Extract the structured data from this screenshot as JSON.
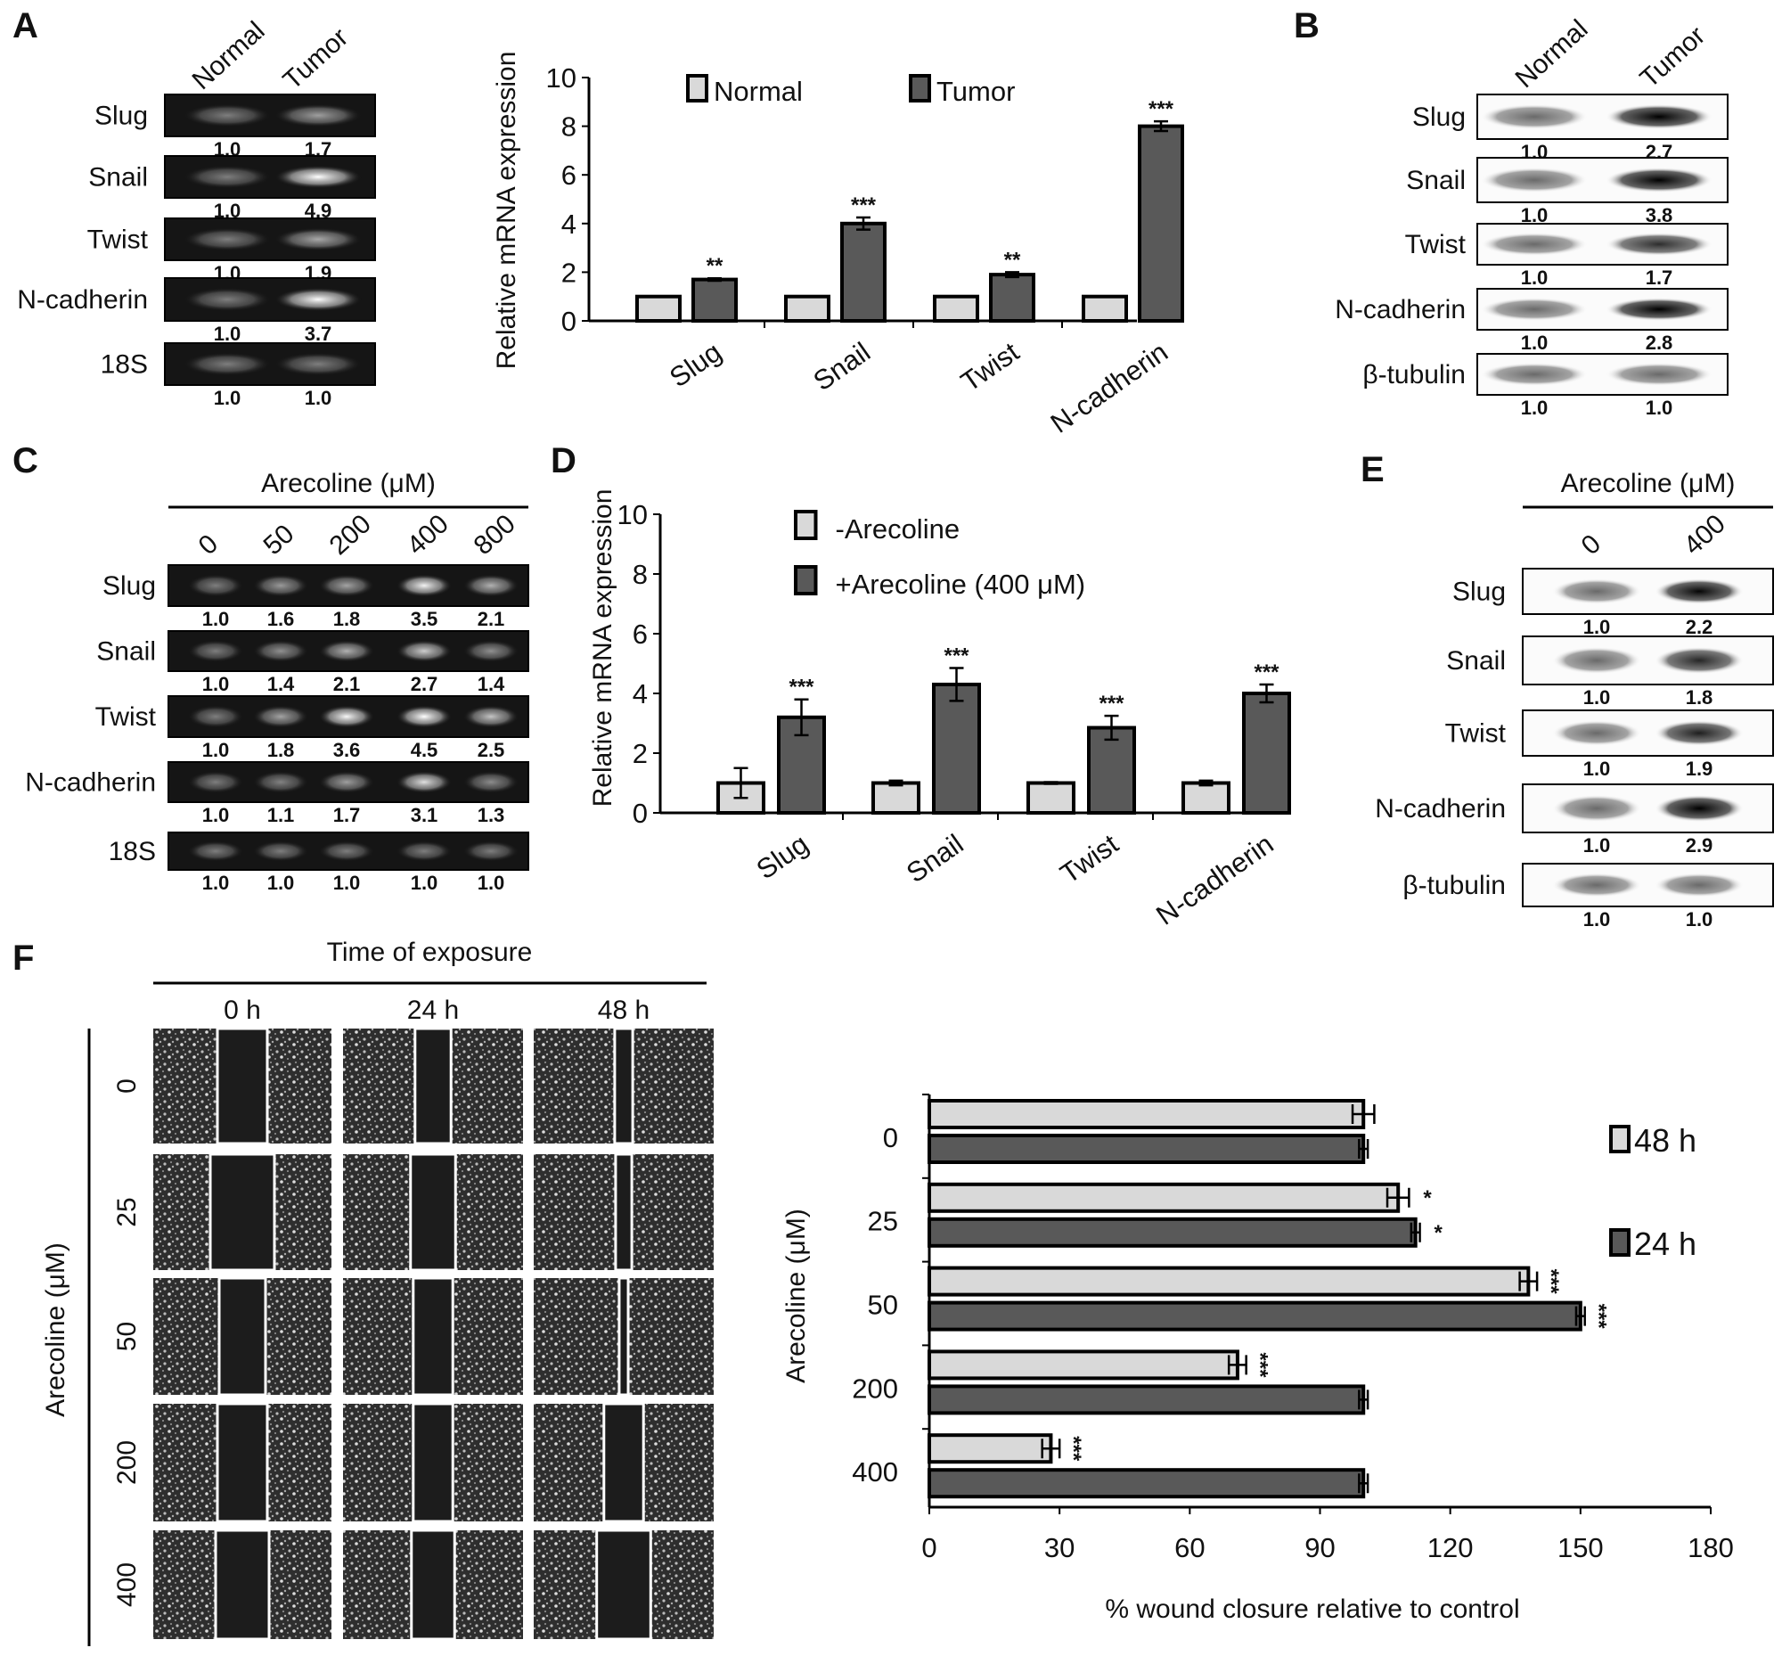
{
  "panel_labels": {
    "A": "A",
    "B": "B",
    "C": "C",
    "D": "D",
    "E": "E",
    "F": "F"
  },
  "panel_a_gel": {
    "lanes": [
      "Normal",
      "Tumor"
    ],
    "rows": [
      {
        "name": "Slug",
        "values": [
          "1.0",
          "1.7"
        ]
      },
      {
        "name": "Snail",
        "values": [
          "1.0",
          "4.9"
        ]
      },
      {
        "name": "Twist",
        "values": [
          "1.0",
          "1.9"
        ]
      },
      {
        "name": "N-cadherin",
        "values": [
          "1.0",
          "3.7"
        ]
      },
      {
        "name": "18S",
        "values": [
          "1.0",
          "1.0"
        ]
      }
    ]
  },
  "panel_b_blot": {
    "lanes": [
      "Normal",
      "Tumor"
    ],
    "rows": [
      {
        "name": "Slug",
        "values": [
          "1.0",
          "2.7"
        ]
      },
      {
        "name": "Snail",
        "values": [
          "1.0",
          "3.8"
        ]
      },
      {
        "name": "Twist",
        "values": [
          "1.0",
          "1.7"
        ]
      },
      {
        "name": "N-cadherin",
        "values": [
          "1.0",
          "2.8"
        ]
      },
      {
        "name": "β-tubulin",
        "values": [
          "1.0",
          "1.0"
        ]
      }
    ]
  },
  "panel_c_gel": {
    "header": "Arecoline (μM)",
    "lanes": [
      "0",
      "50",
      "200",
      "400",
      "800"
    ],
    "rows": [
      {
        "name": "Slug",
        "values": [
          "1.0",
          "1.6",
          "1.8",
          "3.5",
          "2.1"
        ]
      },
      {
        "name": "Snail",
        "values": [
          "1.0",
          "1.4",
          "2.1",
          "2.7",
          "1.4"
        ]
      },
      {
        "name": "Twist",
        "values": [
          "1.0",
          "1.8",
          "3.6",
          "4.5",
          "2.5"
        ]
      },
      {
        "name": "N-cadherin",
        "values": [
          "1.0",
          "1.1",
          "1.7",
          "3.1",
          "1.3"
        ]
      },
      {
        "name": "18S",
        "values": [
          "1.0",
          "1.0",
          "1.0",
          "1.0",
          "1.0"
        ]
      }
    ]
  },
  "panel_e_blot": {
    "header": "Arecoline (μM)",
    "lanes": [
      "0",
      "400"
    ],
    "rows": [
      {
        "name": "Slug",
        "values": [
          "1.0",
          "2.2"
        ]
      },
      {
        "name": "Snail",
        "values": [
          "1.0",
          "1.8"
        ]
      },
      {
        "name": "Twist",
        "values": [
          "1.0",
          "1.9"
        ]
      },
      {
        "name": "N-cadherin",
        "values": [
          "1.0",
          "2.9"
        ]
      },
      {
        "name": "β-tubulin",
        "values": [
          "1.0",
          "1.0"
        ]
      }
    ]
  },
  "panel_f_images": {
    "header": "Time of exposure",
    "columns": [
      "0 h",
      "24 h",
      "48 h"
    ],
    "rows": [
      "0",
      "25",
      "50",
      "200",
      "400"
    ],
    "row_axis_label": "Arecoline  (μM)"
  },
  "chart_data": [
    {
      "id": "A",
      "type": "bar",
      "categories": [
        "Slug",
        "Snail",
        "Twist",
        "N-cadherin"
      ],
      "series": [
        {
          "name": "Normal",
          "values": [
            1.0,
            1.0,
            1.0,
            1.0
          ],
          "errors": [
            0,
            0,
            0,
            0
          ],
          "color": "#d9d9d9"
        },
        {
          "name": "Tumor",
          "values": [
            1.7,
            4.0,
            1.9,
            8.0
          ],
          "errors": [
            0.05,
            0.25,
            0.1,
            0.2
          ],
          "color": "#595959"
        }
      ],
      "significance": [
        [
          "",
          ""
        ],
        [
          "",
          "**"
        ],
        [
          "",
          ""
        ],
        [
          "",
          "***"
        ]
      ],
      "sig_tumor": [
        "**",
        "***",
        "**",
        "***"
      ],
      "ylabel": "Relative mRNA expression",
      "ylim": [
        0,
        10
      ],
      "yticks": [
        "0",
        "2",
        "4",
        "6",
        "8",
        "10"
      ],
      "legend": "top"
    },
    {
      "id": "D",
      "type": "bar",
      "categories": [
        "Slug",
        "Snail",
        "Twist",
        "N-cadherin"
      ],
      "series": [
        {
          "name": "-Arecoline",
          "values": [
            1.0,
            1.0,
            1.0,
            1.0
          ],
          "errors": [
            0.5,
            0.08,
            0.03,
            0.08
          ],
          "color": "#d9d9d9"
        },
        {
          "name": "+Arecoline (400 μM)",
          "values": [
            3.2,
            4.3,
            2.85,
            4.0
          ],
          "errors": [
            0.6,
            0.55,
            0.4,
            0.3
          ],
          "color": "#595959"
        }
      ],
      "sig_treated": [
        "***",
        "***",
        "***",
        "***"
      ],
      "ylabel": "Relative mRNA expression",
      "ylim": [
        0,
        10
      ],
      "yticks": [
        "0",
        "2",
        "4",
        "6",
        "8",
        "10"
      ],
      "legend": "top"
    },
    {
      "id": "F",
      "type": "bar",
      "orientation": "horizontal",
      "categories": [
        "0",
        "25",
        "50",
        "200",
        "400"
      ],
      "series": [
        {
          "name": "48 h",
          "values": [
            100,
            108,
            138,
            71,
            28
          ],
          "errors": [
            2.5,
            2.5,
            2,
            2,
            2
          ],
          "color": "#d9d9d9",
          "sig": [
            "",
            "*",
            "***",
            "***",
            "***"
          ]
        },
        {
          "name": "24 h",
          "values": [
            100,
            112,
            150,
            100,
            100
          ],
          "errors": [
            1,
            1,
            1,
            1,
            1
          ],
          "color": "#595959",
          "sig": [
            "",
            "*",
            "***",
            "",
            ""
          ]
        }
      ],
      "xlabel": "%  wound closure relative to control",
      "ylabel": "Arecoline  (μM)",
      "xlim": [
        0,
        180
      ],
      "xticks": [
        "0",
        "30",
        "60",
        "90",
        "120",
        "150",
        "180"
      ],
      "legend": "right"
    }
  ]
}
